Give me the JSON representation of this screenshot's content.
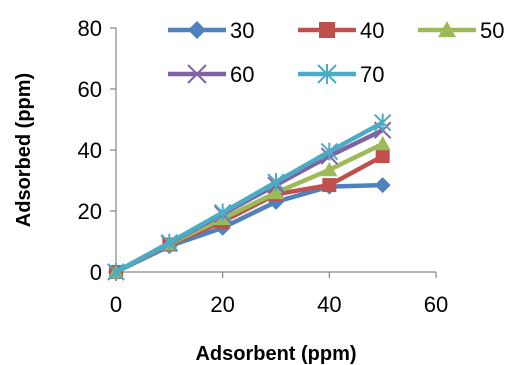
{
  "chart_data": {
    "type": "line",
    "xlabel": "Adsorbent (ppm)",
    "ylabel": "Adsorbed (ppm)",
    "xlim": [
      0,
      60
    ],
    "ylim": [
      0,
      80
    ],
    "xticks": [
      0,
      20,
      40,
      60
    ],
    "yticks": [
      0,
      20,
      40,
      60,
      80
    ],
    "grid": false,
    "legend_position": "top",
    "x": [
      0,
      10,
      20,
      30,
      40,
      50
    ],
    "series": [
      {
        "name": "30",
        "color": "#4F81BD",
        "marker": "diamond",
        "values": [
          0,
          8.5,
          14.5,
          23,
          28,
          28.5
        ]
      },
      {
        "name": "40",
        "color": "#C0504D",
        "marker": "square",
        "values": [
          0,
          9,
          16.5,
          25.5,
          28.5,
          38
        ]
      },
      {
        "name": "50",
        "color": "#9BBB59",
        "marker": "triangle",
        "values": [
          0,
          9.2,
          17.5,
          26,
          33.5,
          42
        ]
      },
      {
        "name": "60",
        "color": "#8064A2",
        "marker": "x",
        "values": [
          0,
          9.4,
          19,
          28.5,
          38,
          46.5
        ]
      },
      {
        "name": "70",
        "color": "#4BACC6",
        "marker": "star",
        "values": [
          0,
          9.6,
          19.5,
          29.5,
          39.5,
          49
        ]
      }
    ]
  }
}
